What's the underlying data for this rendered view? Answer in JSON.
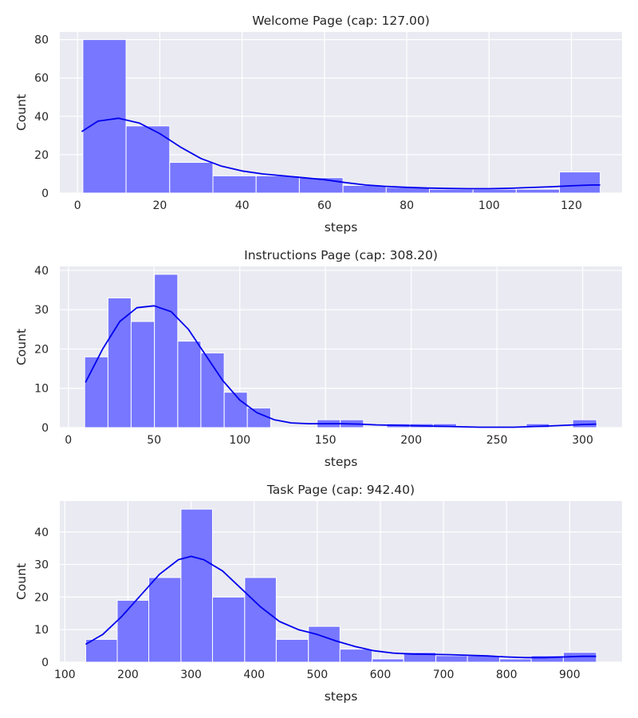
{
  "colors": {
    "plot_background": "#eaeaf2",
    "grid": "#ffffff",
    "bar_fill": "#7777ff",
    "bar_edge": "#ffffff",
    "kde_line": "#0000ee",
    "text": "#262626"
  },
  "chart_data": [
    {
      "type": "bar",
      "title": "Welcome Page (cap: 127.00)",
      "xlabel": "steps",
      "ylabel": "Count",
      "xlim": [
        -4.3,
        132.3
      ],
      "ylim": [
        0,
        84
      ],
      "xticks": [
        0,
        20,
        40,
        60,
        80,
        100,
        120
      ],
      "xtick_labels": [
        "0",
        "20",
        "40",
        "60",
        "80",
        "100",
        "120"
      ],
      "yticks": [
        0,
        20,
        40,
        60,
        80
      ],
      "ytick_labels": [
        "0",
        "20",
        "40",
        "60",
        "80"
      ],
      "grid": true,
      "bins": [
        [
          1.3,
          11.8,
          80
        ],
        [
          11.8,
          22.4,
          35
        ],
        [
          22.4,
          32.9,
          16
        ],
        [
          32.9,
          43.4,
          9
        ],
        [
          43.4,
          53.9,
          9
        ],
        [
          53.9,
          64.5,
          8
        ],
        [
          64.5,
          75.0,
          4
        ],
        [
          75.0,
          85.5,
          3
        ],
        [
          85.5,
          96.1,
          2
        ],
        [
          96.1,
          106.6,
          2
        ],
        [
          106.6,
          117.1,
          2
        ],
        [
          117.1,
          127.0,
          11
        ]
      ],
      "kde": {
        "x": [
          1,
          5,
          10,
          15,
          20,
          25,
          30,
          35,
          40,
          45,
          50,
          55,
          60,
          65,
          70,
          75,
          80,
          85,
          90,
          95,
          100,
          105,
          110,
          115,
          120,
          125,
          127
        ],
        "y": [
          32,
          37.5,
          39,
          36.5,
          31,
          24,
          18,
          14,
          11.5,
          10,
          9,
          8,
          7,
          5.5,
          4.2,
          3.5,
          3,
          2.6,
          2.4,
          2.3,
          2.3,
          2.5,
          2.9,
          3.3,
          3.8,
          4.2,
          4.2
        ]
      }
    },
    {
      "type": "bar",
      "title": "Instructions Page (cap: 308.20)",
      "xlabel": "steps",
      "ylabel": "Count",
      "xlim": [
        -5,
        323
      ],
      "ylim": [
        0,
        41
      ],
      "xticks": [
        0,
        50,
        100,
        150,
        200,
        250,
        300
      ],
      "xtick_labels": [
        "0",
        "50",
        "100",
        "150",
        "200",
        "250",
        "300"
      ],
      "yticks": [
        0,
        10,
        20,
        30,
        40
      ],
      "ytick_labels": [
        "0",
        "10",
        "20",
        "30",
        "40"
      ],
      "grid": true,
      "bins": [
        [
          9.5,
          23.1,
          18
        ],
        [
          23.1,
          36.6,
          33
        ],
        [
          36.6,
          50.2,
          27
        ],
        [
          50.2,
          63.8,
          39
        ],
        [
          63.8,
          77.3,
          22
        ],
        [
          77.3,
          90.9,
          19
        ],
        [
          90.9,
          104.4,
          9
        ],
        [
          104.4,
          118.0,
          5
        ],
        [
          145.1,
          158.6,
          2
        ],
        [
          158.6,
          172.2,
          2
        ],
        [
          185.7,
          199.3,
          1
        ],
        [
          199.3,
          212.9,
          1
        ],
        [
          212.9,
          226.4,
          1
        ],
        [
          267.1,
          280.6,
          1
        ],
        [
          294.2,
          308.2,
          2
        ]
      ],
      "kde": {
        "x": [
          10,
          20,
          30,
          40,
          50,
          60,
          70,
          80,
          90,
          100,
          110,
          120,
          130,
          140,
          150,
          160,
          170,
          180,
          200,
          220,
          240,
          260,
          280,
          300,
          308
        ],
        "y": [
          11.5,
          20,
          27,
          30.5,
          31,
          29.5,
          25,
          18.5,
          12,
          7,
          3.8,
          2,
          1.2,
          1,
          1,
          1,
          0.9,
          0.7,
          0.5,
          0.3,
          0.1,
          0.1,
          0.4,
          0.8,
          0.9
        ]
      }
    },
    {
      "type": "bar",
      "title": "Task Page (cap: 942.40)",
      "xlabel": "steps",
      "ylabel": "Count",
      "xlim": [
        92,
        983
      ],
      "ylim": [
        0,
        49.5
      ],
      "xticks": [
        100,
        200,
        300,
        400,
        500,
        600,
        700,
        800,
        900
      ],
      "xtick_labels": [
        "100",
        "200",
        "300",
        "400",
        "500",
        "600",
        "700",
        "800",
        "900"
      ],
      "yticks": [
        0,
        10,
        20,
        30,
        40
      ],
      "ytick_labels": [
        "0",
        "10",
        "20",
        "30",
        "40"
      ],
      "grid": true,
      "bins": [
        [
          133,
          183,
          7
        ],
        [
          183,
          233,
          19
        ],
        [
          233,
          284,
          26
        ],
        [
          284,
          334,
          47
        ],
        [
          334,
          385,
          20
        ],
        [
          385,
          435,
          26
        ],
        [
          435,
          486,
          7
        ],
        [
          486,
          536,
          11
        ],
        [
          536,
          587,
          4
        ],
        [
          587,
          637,
          1
        ],
        [
          637,
          688,
          3
        ],
        [
          688,
          738,
          2
        ],
        [
          738,
          789,
          2
        ],
        [
          789,
          839,
          1
        ],
        [
          839,
          890,
          2
        ],
        [
          890,
          942.4,
          3
        ]
      ],
      "kde": {
        "x": [
          133,
          160,
          190,
          220,
          250,
          280,
          300,
          320,
          350,
          380,
          410,
          440,
          470,
          500,
          530,
          560,
          590,
          620,
          650,
          680,
          710,
          740,
          770,
          800,
          830,
          860,
          890,
          920,
          942
        ],
        "y": [
          5.5,
          8.5,
          14,
          20.5,
          27,
          31.5,
          32.5,
          31.5,
          28,
          22.5,
          17,
          12.5,
          10,
          8.5,
          6.5,
          4.8,
          3.5,
          2.8,
          2.5,
          2.4,
          2.3,
          2.1,
          1.9,
          1.6,
          1.4,
          1.4,
          1.6,
          1.8,
          1.8
        ]
      }
    }
  ]
}
